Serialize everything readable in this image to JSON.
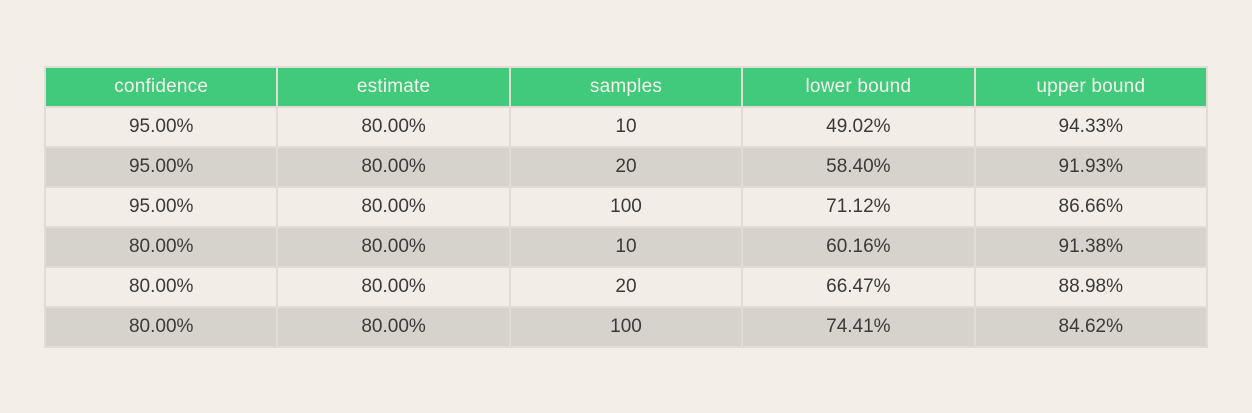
{
  "chart_data": {
    "type": "table",
    "columns": [
      "confidence",
      "estimate",
      "samples",
      "lower bound",
      "upper bound"
    ],
    "rows": [
      [
        "95.00%",
        "80.00%",
        "10",
        "49.02%",
        "94.33%"
      ],
      [
        "95.00%",
        "80.00%",
        "20",
        "58.40%",
        "91.93%"
      ],
      [
        "95.00%",
        "80.00%",
        "100",
        "71.12%",
        "86.66%"
      ],
      [
        "80.00%",
        "80.00%",
        "10",
        "60.16%",
        "91.38%"
      ],
      [
        "80.00%",
        "80.00%",
        "20",
        "66.47%",
        "88.98%"
      ],
      [
        "80.00%",
        "80.00%",
        "100",
        "74.41%",
        "84.62%"
      ]
    ],
    "layout_hints": {
      "header_position": "top",
      "row_striping": true,
      "cell_alignment": "center"
    }
  },
  "colors": {
    "page_background": "#f3efe8",
    "header_background": "#41c97c",
    "header_text": "#f4f1ec",
    "row_light": "#f2eee7",
    "row_dark": "#d6d2cc",
    "cell_border": "#e1ddd6",
    "body_text": "#3a3a3a"
  }
}
